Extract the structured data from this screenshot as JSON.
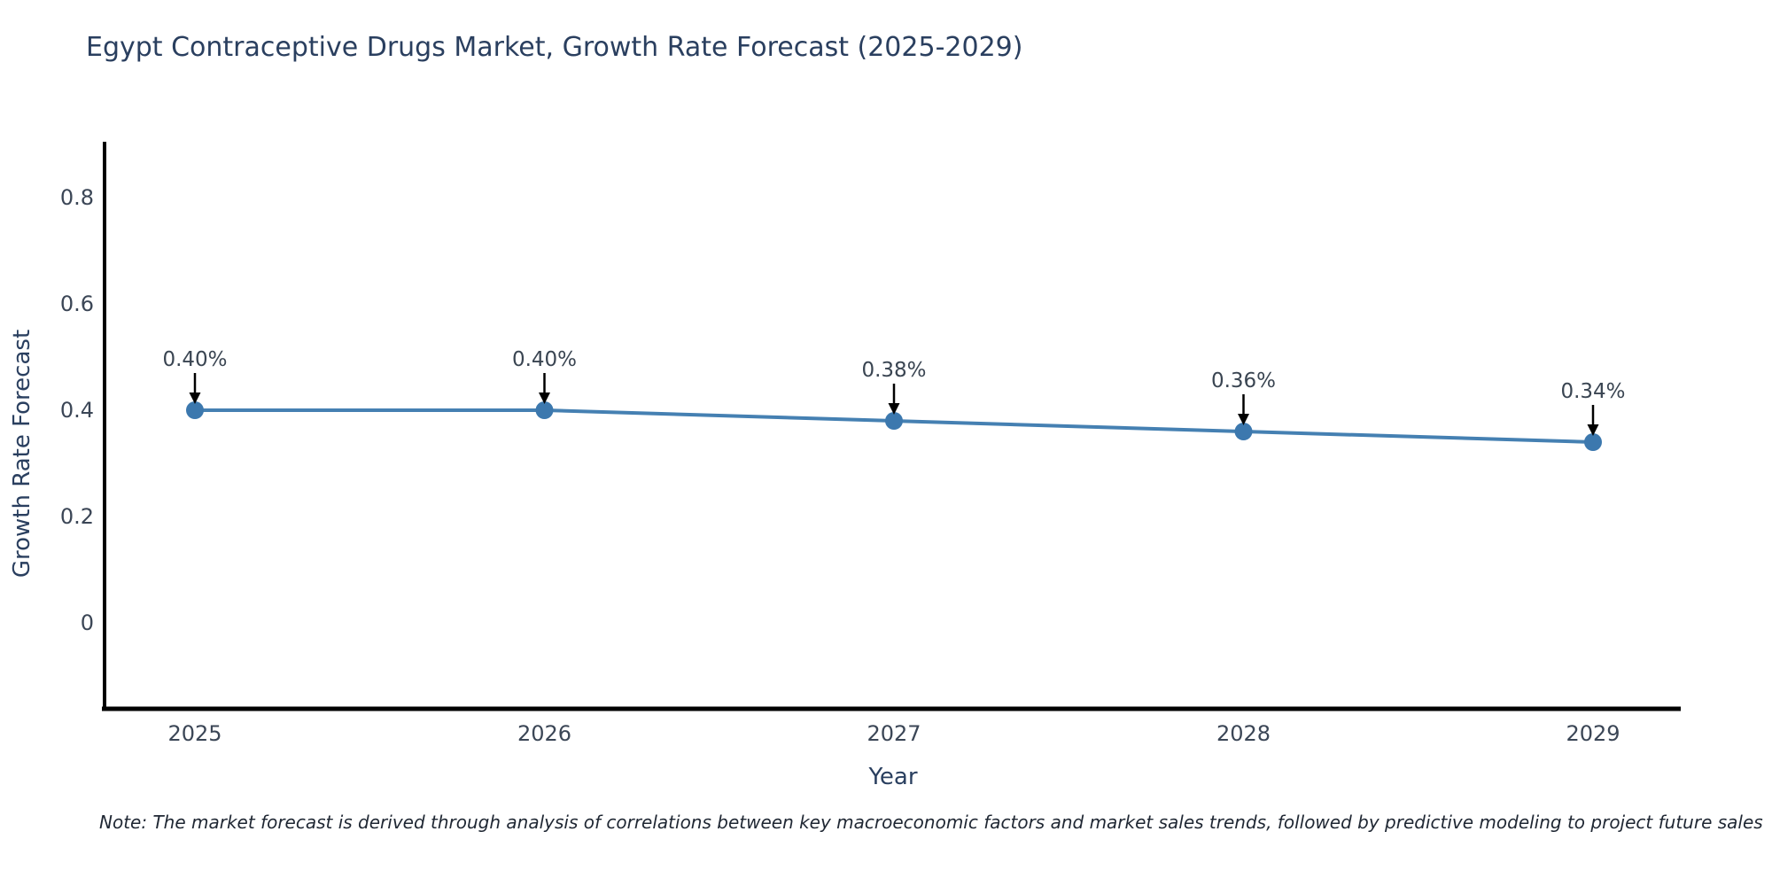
{
  "page": {
    "background": "#ffffff"
  },
  "note": {
    "text": "Note: The market forecast is derived through analysis of correlations between key macroeconomic factors and market sales trends, followed by predictive modeling to project future sales"
  },
  "chart_data": {
    "type": "line",
    "title": "Egypt Contraceptive Drugs Market, Growth Rate Forecast (2025-2029)",
    "xlabel": "Year",
    "ylabel": "Growth Rate Forecast",
    "categories": [
      "2025",
      "2026",
      "2027",
      "2028",
      "2029"
    ],
    "values": [
      0.4,
      0.4,
      0.38,
      0.36,
      0.34
    ],
    "point_labels": [
      "0.40%",
      "0.40%",
      "0.38%",
      "0.36%",
      "0.34%"
    ],
    "yticks": [
      "0.8",
      "0.6",
      "0.4",
      "0.2",
      "0"
    ],
    "ylim": [
      -0.163,
      0.905
    ],
    "grid": false,
    "legend": "none",
    "annotations": "value labels with downward arrows above each marker",
    "colors": {
      "line": "#4580b2",
      "marker": "#3c78ae",
      "arrow": "#000000",
      "axis": "#000000",
      "title": "#2a3f5f",
      "tick": "#3b4656",
      "point_label": "#3a4552"
    }
  }
}
